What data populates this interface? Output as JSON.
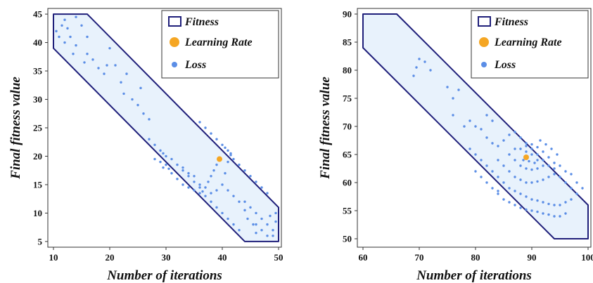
{
  "chart_data": [
    {
      "type": "scatter",
      "xlabel": "Number of iterations",
      "ylabel": "Final fitness value",
      "xlim": [
        9,
        50.5
      ],
      "ylim": [
        4,
        46
      ],
      "xticks": [
        "10",
        "20",
        "30",
        "40",
        "50"
      ],
      "yticks": [
        "5",
        "10",
        "15",
        "20",
        "25",
        "30",
        "35",
        "40",
        "45"
      ],
      "grid": false,
      "legend_position": "top-right",
      "legend": {
        "fitness": "Fitness",
        "learning_rate": "Learning Rate",
        "loss": "Loss"
      },
      "colors": {
        "fitness_edge": "#1f1f7a",
        "fitness_fill": "#e8f2fc",
        "learning_rate": "#f5a623",
        "loss": "#5b8ee6"
      },
      "fitness_region": [
        [
          10,
          45
        ],
        [
          16,
          45
        ],
        [
          50,
          11
        ],
        [
          50,
          5
        ],
        [
          44,
          5
        ],
        [
          10,
          39
        ]
      ],
      "learning_rate_point": [
        39.5,
        19.5
      ],
      "loss_points": [
        [
          10.5,
          42
        ],
        [
          11,
          41
        ],
        [
          11.5,
          43
        ],
        [
          12,
          40
        ],
        [
          12.5,
          42.5
        ],
        [
          13,
          41
        ],
        [
          12,
          44
        ],
        [
          14,
          44.5
        ],
        [
          15,
          43
        ],
        [
          16,
          41
        ],
        [
          13.5,
          38
        ],
        [
          14,
          39.5
        ],
        [
          15.5,
          36.5
        ],
        [
          16,
          38
        ],
        [
          17,
          37
        ],
        [
          18,
          35.5
        ],
        [
          19,
          34.5
        ],
        [
          19.5,
          36
        ],
        [
          20,
          39
        ],
        [
          21,
          36
        ],
        [
          22,
          33
        ],
        [
          22.5,
          31
        ],
        [
          23,
          34.5
        ],
        [
          24,
          30
        ],
        [
          25,
          29
        ],
        [
          26,
          27.5
        ],
        [
          27,
          26.5
        ],
        [
          25.5,
          32
        ],
        [
          27,
          23
        ],
        [
          28,
          22
        ],
        [
          29,
          21
        ],
        [
          29.5,
          20.5
        ],
        [
          30,
          20
        ],
        [
          31,
          19.5
        ],
        [
          32,
          18.5
        ],
        [
          33,
          17.5
        ],
        [
          34,
          16.5
        ],
        [
          35,
          15.5
        ],
        [
          36,
          14.5
        ],
        [
          36.5,
          13.8
        ],
        [
          37,
          13
        ],
        [
          38,
          12
        ],
        [
          39,
          11
        ],
        [
          40,
          10
        ],
        [
          41,
          9
        ],
        [
          42,
          8
        ],
        [
          43,
          7
        ],
        [
          31,
          17
        ],
        [
          32,
          16
        ],
        [
          33,
          15
        ],
        [
          34,
          14.5
        ],
        [
          35,
          14
        ],
        [
          36,
          13.5
        ],
        [
          33,
          18
        ],
        [
          34,
          17
        ],
        [
          35,
          16.5
        ],
        [
          36,
          15
        ],
        [
          37,
          14.5
        ],
        [
          37.5,
          15.5
        ],
        [
          38,
          16.5
        ],
        [
          38.5,
          17.5
        ],
        [
          39,
          18.5
        ],
        [
          38,
          13.5
        ],
        [
          39,
          14
        ],
        [
          40,
          15
        ],
        [
          40.5,
          17
        ],
        [
          41,
          19
        ],
        [
          41.5,
          20.5
        ],
        [
          42,
          19.5
        ],
        [
          43,
          18.5
        ],
        [
          44,
          17.5
        ],
        [
          45,
          16.5
        ],
        [
          46,
          15.5
        ],
        [
          47,
          14.5
        ],
        [
          48,
          13.5
        ],
        [
          40,
          22
        ],
        [
          39,
          23
        ],
        [
          38,
          24
        ],
        [
          37,
          25
        ],
        [
          36,
          26
        ],
        [
          40.5,
          21.5
        ],
        [
          41,
          21
        ],
        [
          41.5,
          20.2
        ],
        [
          44,
          12
        ],
        [
          45,
          11
        ],
        [
          46,
          10
        ],
        [
          47,
          9
        ],
        [
          48,
          8
        ],
        [
          49,
          7
        ],
        [
          46,
          8
        ],
        [
          47,
          7
        ],
        [
          48,
          6
        ],
        [
          49,
          6
        ],
        [
          49.5,
          8.5
        ],
        [
          44.5,
          9
        ],
        [
          45.5,
          8
        ],
        [
          43,
          12
        ],
        [
          42,
          13
        ],
        [
          41,
          14
        ],
        [
          44,
          10.5
        ],
        [
          46,
          6.5
        ],
        [
          48.5,
          9.5
        ],
        [
          49.5,
          10
        ],
        [
          28,
          19.5
        ],
        [
          29,
          19
        ],
        [
          30,
          18.5
        ],
        [
          29.5,
          18
        ],
        [
          30.5,
          17.8
        ]
      ]
    },
    {
      "type": "scatter",
      "xlabel": "Number of iterations",
      "ylabel": "Final fitness value",
      "xlim": [
        59,
        100.5
      ],
      "ylim": [
        48.5,
        91
      ],
      "xticks": [
        "60",
        "70",
        "80",
        "90",
        "100"
      ],
      "yticks": [
        "50",
        "55",
        "60",
        "65",
        "70",
        "75",
        "80",
        "85",
        "90"
      ],
      "grid": false,
      "legend_position": "top-right",
      "legend": {
        "fitness": "Fitness",
        "learning_rate": "Learning Rate",
        "loss": "Loss"
      },
      "colors": {
        "fitness_edge": "#1f1f7a",
        "fitness_fill": "#e8f2fc",
        "learning_rate": "#f5a623",
        "loss": "#5b8ee6"
      },
      "fitness_region": [
        [
          60,
          90
        ],
        [
          66,
          90
        ],
        [
          100,
          56
        ],
        [
          100,
          50
        ],
        [
          94,
          50
        ],
        [
          60,
          84
        ]
      ],
      "learning_rate_point": [
        89,
        64.5
      ],
      "loss_points": [
        [
          69,
          79
        ],
        [
          69.5,
          80.5
        ],
        [
          70,
          82
        ],
        [
          71,
          81.5
        ],
        [
          72,
          80
        ],
        [
          75,
          77
        ],
        [
          76,
          75
        ],
        [
          77,
          76.5
        ],
        [
          76,
          72
        ],
        [
          78,
          70
        ],
        [
          79,
          71
        ],
        [
          80,
          70
        ],
        [
          81,
          69.5
        ],
        [
          82,
          72
        ],
        [
          83,
          71
        ],
        [
          82,
          68
        ],
        [
          83,
          67
        ],
        [
          84,
          66.5
        ],
        [
          85,
          67.5
        ],
        [
          86,
          68.5
        ],
        [
          87,
          69
        ],
        [
          88,
          68
        ],
        [
          89,
          67
        ],
        [
          90,
          66
        ],
        [
          91,
          65
        ],
        [
          92,
          64
        ],
        [
          93,
          63
        ],
        [
          94,
          62.5
        ],
        [
          95,
          61
        ],
        [
          96,
          60
        ],
        [
          97,
          59
        ],
        [
          98,
          58
        ],
        [
          79,
          66
        ],
        [
          80,
          65
        ],
        [
          81,
          64
        ],
        [
          82,
          63
        ],
        [
          83,
          62
        ],
        [
          84,
          61
        ],
        [
          85,
          60
        ],
        [
          86,
          59
        ],
        [
          87,
          58.5
        ],
        [
          88,
          58
        ],
        [
          89,
          57.5
        ],
        [
          90,
          57
        ],
        [
          91,
          56.8
        ],
        [
          92,
          56.5
        ],
        [
          93,
          56.2
        ],
        [
          94,
          56
        ],
        [
          95,
          56
        ],
        [
          96,
          56.5
        ],
        [
          97,
          57
        ],
        [
          84,
          64
        ],
        [
          85,
          63
        ],
        [
          86,
          62
        ],
        [
          87,
          61
        ],
        [
          88,
          60.5
        ],
        [
          89,
          60
        ],
        [
          90,
          60
        ],
        [
          91,
          60.2
        ],
        [
          92,
          60.5
        ],
        [
          93,
          61
        ],
        [
          94,
          61.5
        ],
        [
          86,
          65
        ],
        [
          87,
          64
        ],
        [
          88,
          63
        ],
        [
          89,
          62.5
        ],
        [
          90,
          62.3
        ],
        [
          91,
          62.5
        ],
        [
          92,
          63
        ],
        [
          87,
          66
        ],
        [
          88,
          66
        ],
        [
          89,
          65.5
        ],
        [
          90,
          65
        ],
        [
          91,
          64
        ],
        [
          88.5,
          64
        ],
        [
          89.5,
          63.8
        ],
        [
          90.5,
          63.5
        ],
        [
          89,
          66.5
        ],
        [
          90,
          66.8
        ],
        [
          91,
          66.3
        ],
        [
          92,
          65.5
        ],
        [
          93,
          64.5
        ],
        [
          94,
          63.5
        ],
        [
          95,
          63
        ],
        [
          96,
          62
        ],
        [
          97,
          61.5
        ],
        [
          98,
          60
        ],
        [
          99,
          59
        ],
        [
          84,
          58
        ],
        [
          85,
          57
        ],
        [
          86,
          56.5
        ],
        [
          87,
          56
        ],
        [
          88,
          55.5
        ],
        [
          89,
          55.2
        ],
        [
          90,
          55
        ],
        [
          91,
          54.8
        ],
        [
          92,
          54.5
        ],
        [
          93,
          54.3
        ],
        [
          94,
          54
        ],
        [
          95,
          54
        ],
        [
          96,
          54.5
        ],
        [
          81,
          61
        ],
        [
          82,
          60
        ],
        [
          83,
          59
        ],
        [
          84,
          58.5
        ],
        [
          80,
          62
        ],
        [
          91.5,
          67.5
        ],
        [
          92.5,
          66.8
        ],
        [
          93.5,
          66
        ],
        [
          94.5,
          65
        ]
      ]
    }
  ]
}
